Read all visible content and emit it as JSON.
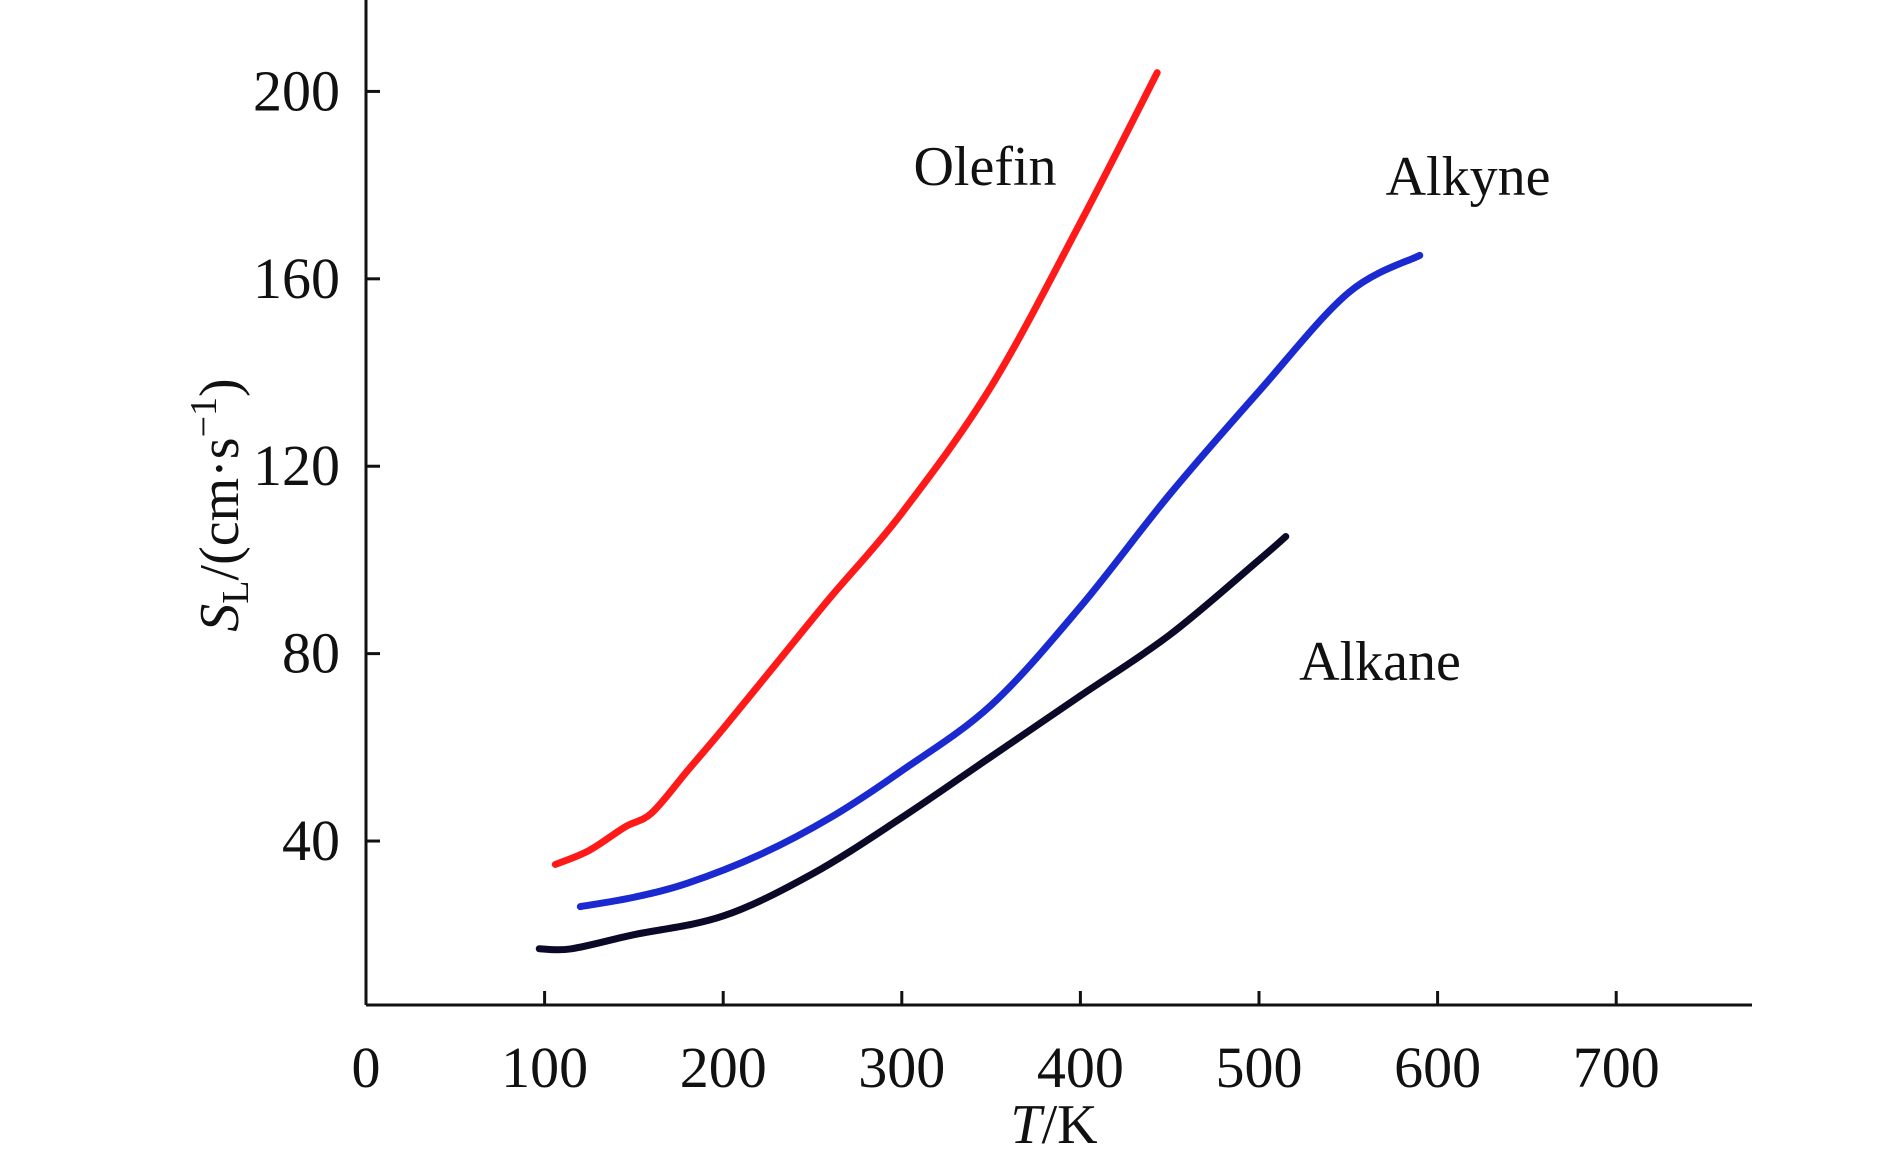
{
  "chart_data": {
    "type": "line",
    "title": "",
    "xlabel": {
      "italic": "T",
      "rest": "/K"
    },
    "ylabel": {
      "symbol": "S",
      "subscript": "L",
      "rest": "/(cm·s",
      "superscript": "−1",
      "close": ")"
    },
    "x_ticks": [
      0,
      100,
      200,
      300,
      400,
      500,
      600,
      700
    ],
    "y_ticks": [
      40,
      80,
      120,
      160,
      200
    ],
    "xlim": [
      0,
      770
    ],
    "ylim": [
      5,
      220
    ],
    "grid": false,
    "series": [
      {
        "name": "Olefin",
        "color": "#ff1a1a",
        "points": [
          [
            106,
            35
          ],
          [
            125,
            38
          ],
          [
            145,
            43
          ],
          [
            160,
            46
          ],
          [
            180,
            55
          ],
          [
            200,
            64
          ],
          [
            230,
            78
          ],
          [
            260,
            92
          ],
          [
            300,
            110
          ],
          [
            350,
            137
          ],
          [
            400,
            172
          ],
          [
            443,
            204
          ]
        ]
      },
      {
        "name": "Alkyne",
        "color": "#1a2ad0",
        "points": [
          [
            120,
            26
          ],
          [
            150,
            28
          ],
          [
            180,
            31
          ],
          [
            220,
            37
          ],
          [
            260,
            45
          ],
          [
            300,
            55
          ],
          [
            350,
            69
          ],
          [
            400,
            90
          ],
          [
            450,
            114
          ],
          [
            500,
            136
          ],
          [
            550,
            157
          ],
          [
            590,
            165
          ]
        ]
      },
      {
        "name": "Alkane",
        "color": "#0a0a28",
        "points": [
          [
            97,
            17
          ],
          [
            115,
            17
          ],
          [
            150,
            20
          ],
          [
            200,
            24
          ],
          [
            250,
            33
          ],
          [
            300,
            45
          ],
          [
            350,
            58
          ],
          [
            400,
            71
          ],
          [
            450,
            84
          ],
          [
            500,
            100
          ],
          [
            515,
            105
          ]
        ]
      }
    ]
  }
}
